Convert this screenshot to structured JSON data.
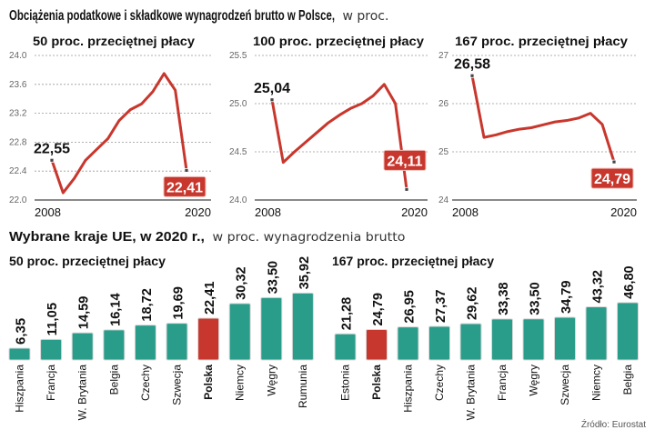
{
  "title": {
    "bold": "Obciążenia podatkowe i składkowe wynagrodzeń brutto w Polsce,",
    "light": "w proc."
  },
  "section2": {
    "bold": "Wybrane kraje UE, w 2020 r.,",
    "light": "w proc. wynagrodzenia brutto"
  },
  "source": "Źródło: Eurostat",
  "colors": {
    "line": "#c8372d",
    "bar": "#2a9d8a",
    "highlight": "#c8372d"
  },
  "chart_data": [
    {
      "type": "line",
      "title": "50 proc. przeciętnej płacy",
      "x": [
        2008,
        2009,
        2010,
        2011,
        2012,
        2013,
        2014,
        2015,
        2016,
        2017,
        2018,
        2019,
        2020
      ],
      "values": [
        22.55,
        22.1,
        22.3,
        22.55,
        22.7,
        22.85,
        23.1,
        23.25,
        23.33,
        23.5,
        23.75,
        23.52,
        22.41
      ],
      "ylim": [
        22.0,
        24.0
      ],
      "yticks": [
        "22.0",
        "22.4",
        "22.8",
        "23.2",
        "23.6",
        "24.0"
      ],
      "xticks": [
        "2008",
        "2020"
      ],
      "start_label": "22,55",
      "end_label": "22,41"
    },
    {
      "type": "line",
      "title": "100 proc. przeciętnej płacy",
      "x": [
        2008,
        2009,
        2010,
        2011,
        2012,
        2013,
        2014,
        2015,
        2016,
        2017,
        2018,
        2019,
        2020
      ],
      "values": [
        25.04,
        24.39,
        24.5,
        24.6,
        24.7,
        24.8,
        24.88,
        24.95,
        25.0,
        25.08,
        25.2,
        25.0,
        24.11
      ],
      "ylim": [
        24.0,
        25.5
      ],
      "yticks": [
        "24.0",
        "24.5",
        "25.0",
        "25.5"
      ],
      "xticks": [
        "2008",
        "2020"
      ],
      "start_label": "25,04",
      "end_label": "24,11"
    },
    {
      "type": "line",
      "title": "167 proc. przeciętnej płacy",
      "x": [
        2008,
        2009,
        2010,
        2011,
        2012,
        2013,
        2014,
        2015,
        2016,
        2017,
        2018,
        2019,
        2020
      ],
      "values": [
        26.58,
        25.3,
        25.35,
        25.42,
        25.47,
        25.5,
        25.56,
        25.62,
        25.65,
        25.7,
        25.8,
        25.57,
        24.79
      ],
      "ylim": [
        24,
        27
      ],
      "yticks": [
        "24",
        "25",
        "26",
        "27"
      ],
      "xticks": [
        "2008",
        "2020"
      ],
      "start_label": "26,58",
      "end_label": "24,79"
    },
    {
      "type": "bar",
      "title": "50 proc. przeciętnej płacy",
      "categories": [
        "Hiszpania",
        "Francja",
        "W. Brytania",
        "Belgia",
        "Czechy",
        "Szwecja",
        "Polska",
        "Niemcy",
        "Węgry",
        "Rumunia"
      ],
      "values": [
        6.35,
        11.05,
        14.59,
        16.14,
        18.72,
        19.69,
        22.41,
        30.32,
        33.5,
        35.92
      ],
      "labels": [
        "6,35",
        "11,05",
        "14,59",
        "16,14",
        "18,72",
        "19,69",
        "22,41",
        "30,32",
        "33,50",
        "35,92"
      ],
      "highlight": "Polska"
    },
    {
      "type": "bar",
      "title": "167 proc. przeciętnej płacy",
      "categories": [
        "Estonia",
        "Polska",
        "Hiszpania",
        "Czechy",
        "W. Brytania",
        "Francja",
        "Węgry",
        "Szwecja",
        "Niemcy",
        "Belgia"
      ],
      "values": [
        21.28,
        24.79,
        26.95,
        27.37,
        29.62,
        33.38,
        33.5,
        34.79,
        43.32,
        46.8
      ],
      "labels": [
        "21,28",
        "24,79",
        "26,95",
        "27,37",
        "29,62",
        "33,38",
        "33,50",
        "34,79",
        "43,32",
        "46,80"
      ],
      "highlight": "Polska"
    }
  ]
}
